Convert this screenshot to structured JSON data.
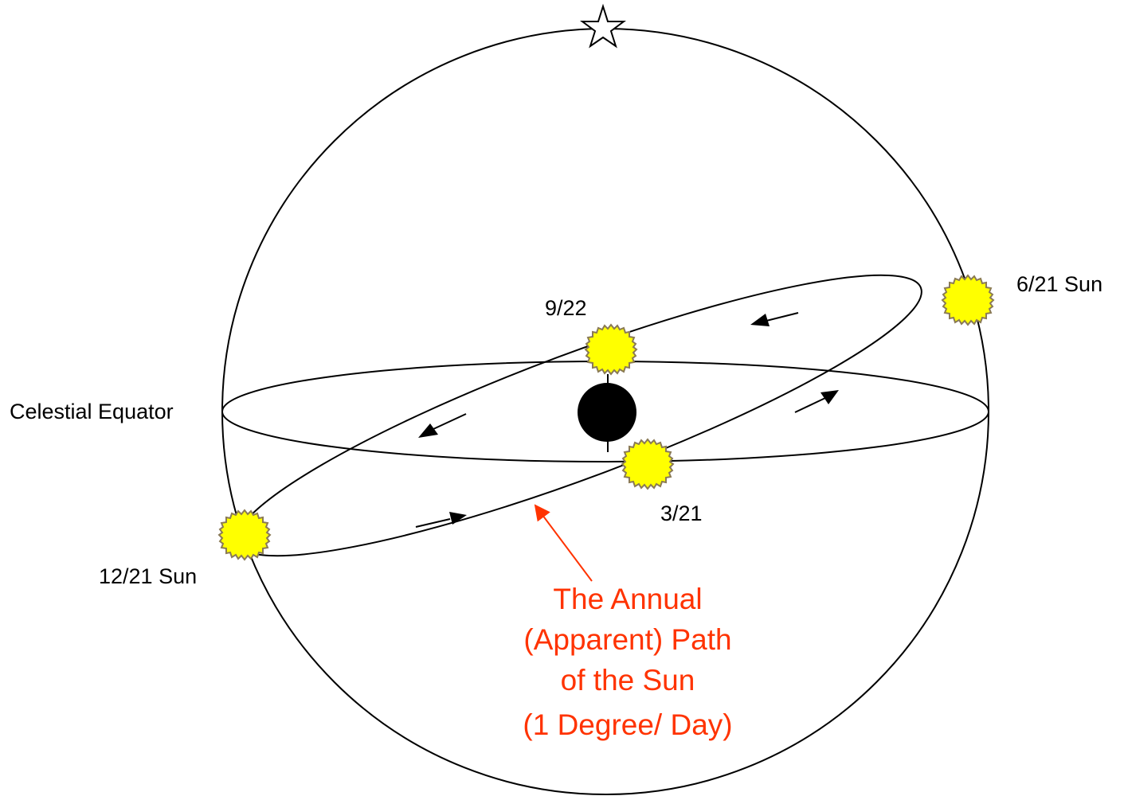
{
  "labels": {
    "celestial_equator": "Celestial Equator",
    "sun_jun21": "6/21 Sun",
    "sun_sep22": "9/22",
    "sun_mar21": "3/21",
    "sun_dec21": "12/21 Sun"
  },
  "annotation": {
    "line1": "The Annual",
    "line2": "(Apparent) Path",
    "line3": "of the Sun",
    "line4": "(1 Degree/ Day)"
  },
  "icons": {
    "pole": "star-icon",
    "sun": "sun-icon",
    "earth": "earth-icon"
  },
  "colors": {
    "sun_fill": "#ffff00",
    "earth": "#000000",
    "annotation": "#ff3300",
    "lines": "#000000"
  }
}
